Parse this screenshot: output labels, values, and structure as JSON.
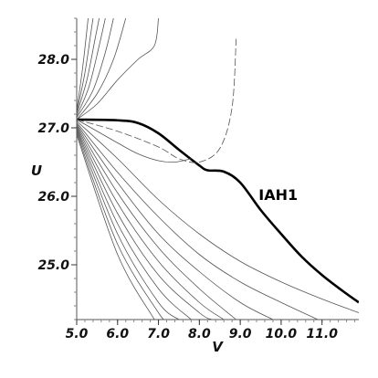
{
  "chart_data": {
    "type": "line",
    "title": "",
    "xlabel": "V",
    "ylabel": "U",
    "xlim": [
      5.0,
      11.9
    ],
    "ylim": [
      24.2,
      28.6
    ],
    "x_ticks": [
      "5.0",
      "6.0",
      "7.0",
      "8.0",
      "9.0",
      "10.0",
      "11.0"
    ],
    "y_ticks": [
      "25.0",
      "26.0",
      "27.0",
      "28.0"
    ],
    "grid": false,
    "annotation": {
      "text": "IAH1",
      "x": 9.45,
      "y": 25.95
    },
    "highlighted_series": "IAH1",
    "series": [
      {
        "name": "IAH1",
        "bold": true,
        "points": [
          [
            5.0,
            27.12
          ],
          [
            6.0,
            27.11
          ],
          [
            6.5,
            27.07
          ],
          [
            7.0,
            26.92
          ],
          [
            7.5,
            26.68
          ],
          [
            8.0,
            26.45
          ],
          [
            8.2,
            26.38
          ],
          [
            8.6,
            26.36
          ],
          [
            9.0,
            26.2
          ],
          [
            9.5,
            25.8
          ],
          [
            10.0,
            25.45
          ],
          [
            10.5,
            25.12
          ],
          [
            11.0,
            24.85
          ],
          [
            11.5,
            24.62
          ],
          [
            11.9,
            24.45
          ]
        ]
      },
      {
        "dashed": true,
        "points": [
          [
            5.0,
            27.12
          ],
          [
            6.0,
            26.95
          ],
          [
            7.0,
            26.72
          ],
          [
            7.5,
            26.55
          ],
          [
            8.0,
            26.5
          ],
          [
            8.5,
            26.7
          ],
          [
            8.8,
            27.3
          ],
          [
            8.9,
            28.3
          ]
        ]
      },
      {
        "points": [
          [
            5.0,
            27.12
          ],
          [
            5.5,
            26.95
          ],
          [
            6.0,
            26.78
          ],
          [
            6.5,
            26.62
          ],
          [
            7.0,
            26.52
          ],
          [
            7.4,
            26.5
          ],
          [
            7.8,
            26.55
          ]
        ]
      },
      {
        "points": [
          [
            5.0,
            27.12
          ],
          [
            5.5,
            27.35
          ],
          [
            6.0,
            27.7
          ],
          [
            6.5,
            28.0
          ],
          [
            6.9,
            28.2
          ],
          [
            7.0,
            28.6
          ]
        ]
      },
      {
        "points": [
          [
            5.0,
            27.12
          ],
          [
            5.5,
            27.5
          ],
          [
            5.9,
            28.0
          ],
          [
            6.2,
            28.6
          ]
        ]
      },
      {
        "points": [
          [
            5.0,
            27.15
          ],
          [
            5.4,
            27.55
          ],
          [
            5.7,
            28.1
          ],
          [
            5.9,
            28.6
          ]
        ]
      },
      {
        "points": [
          [
            5.0,
            27.17
          ],
          [
            5.3,
            27.6
          ],
          [
            5.55,
            28.2
          ],
          [
            5.7,
            28.6
          ]
        ]
      },
      {
        "points": [
          [
            5.0,
            27.2
          ],
          [
            5.25,
            27.7
          ],
          [
            5.45,
            28.3
          ],
          [
            5.55,
            28.6
          ]
        ]
      },
      {
        "points": [
          [
            5.0,
            27.22
          ],
          [
            5.2,
            27.8
          ],
          [
            5.35,
            28.4
          ],
          [
            5.4,
            28.6
          ]
        ]
      },
      {
        "points": [
          [
            5.0,
            27.25
          ],
          [
            5.15,
            27.9
          ],
          [
            5.28,
            28.6
          ]
        ]
      },
      {
        "points": [
          [
            5.0,
            27.1
          ],
          [
            6.0,
            26.55
          ],
          [
            7.0,
            25.95
          ],
          [
            8.0,
            25.45
          ],
          [
            9.0,
            25.05
          ],
          [
            10.0,
            24.75
          ],
          [
            11.0,
            24.5
          ],
          [
            11.9,
            24.3
          ]
        ]
      },
      {
        "points": [
          [
            5.0,
            27.08
          ],
          [
            6.0,
            26.35
          ],
          [
            7.0,
            25.7
          ],
          [
            8.0,
            25.15
          ],
          [
            9.0,
            24.75
          ],
          [
            10.0,
            24.45
          ],
          [
            10.9,
            24.2
          ]
        ]
      },
      {
        "points": [
          [
            5.0,
            27.06
          ],
          [
            6.0,
            26.2
          ],
          [
            7.0,
            25.45
          ],
          [
            8.0,
            24.9
          ],
          [
            9.0,
            24.45
          ],
          [
            9.8,
            24.2
          ]
        ]
      },
      {
        "points": [
          [
            5.0,
            27.04
          ],
          [
            6.0,
            26.05
          ],
          [
            7.0,
            25.25
          ],
          [
            8.0,
            24.65
          ],
          [
            8.9,
            24.2
          ]
        ]
      },
      {
        "points": [
          [
            5.0,
            27.02
          ],
          [
            6.0,
            25.9
          ],
          [
            7.0,
            25.05
          ],
          [
            8.0,
            24.45
          ],
          [
            8.6,
            24.2
          ]
        ]
      },
      {
        "points": [
          [
            5.0,
            27.0
          ],
          [
            6.0,
            25.75
          ],
          [
            7.0,
            24.85
          ],
          [
            8.0,
            24.3
          ],
          [
            8.3,
            24.2
          ]
        ]
      },
      {
        "points": [
          [
            5.0,
            26.98
          ],
          [
            6.0,
            25.6
          ],
          [
            7.0,
            24.65
          ],
          [
            7.8,
            24.2
          ]
        ]
      },
      {
        "points": [
          [
            5.0,
            26.96
          ],
          [
            6.0,
            25.45
          ],
          [
            7.0,
            24.45
          ],
          [
            7.5,
            24.2
          ]
        ]
      },
      {
        "points": [
          [
            5.0,
            26.93
          ],
          [
            6.0,
            25.3
          ],
          [
            7.0,
            24.3
          ],
          [
            7.2,
            24.2
          ]
        ]
      },
      {
        "points": [
          [
            5.0,
            26.9
          ],
          [
            6.0,
            25.15
          ],
          [
            6.9,
            24.2
          ]
        ]
      }
    ]
  }
}
